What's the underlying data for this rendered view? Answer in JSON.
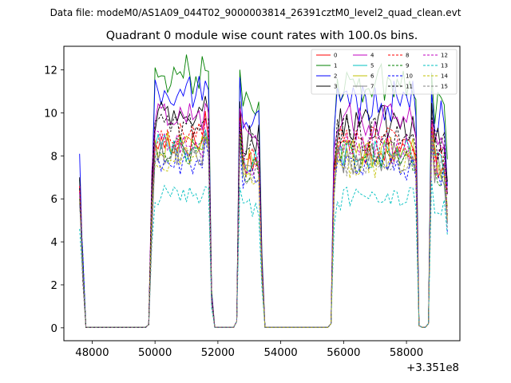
{
  "chart_data": {
    "type": "line",
    "suptitle": "Data file: modeM0/AS1A09_044T02_9000003814_26391cztM0_level2_quad_clean.evt",
    "title": "Quadrant 0 module wise count rates with 100.0s bins.",
    "xlabel": "",
    "ylabel": "",
    "x_offset_label": "+3.351e8",
    "xlim": [
      47100,
      59700
    ],
    "ylim": [
      -0.6,
      13.1
    ],
    "xticks": [
      48000,
      50000,
      52000,
      54000,
      56000,
      58000
    ],
    "xtick_labels": [
      "48000",
      "50000",
      "52000",
      "54000",
      "56000",
      "58000"
    ],
    "yticks": [
      0,
      2,
      4,
      6,
      8,
      10,
      12
    ],
    "ytick_labels": [
      "0",
      "2",
      "4",
      "6",
      "8",
      "10",
      "12"
    ],
    "legend_location": "upper right",
    "legend_columns": 4,
    "time_bins": {
      "start": 47600,
      "step": 100,
      "segments": [
        {
          "from": 47600,
          "to": 49800,
          "state": "drop"
        },
        {
          "from": 49800,
          "to": 51800,
          "state": "active"
        },
        {
          "from": 51800,
          "to": 52600,
          "state": "gap"
        },
        {
          "from": 52700,
          "to": 53400,
          "state": "active"
        },
        {
          "from": 53500,
          "to": 55600,
          "state": "gap"
        },
        {
          "from": 55700,
          "to": 58300,
          "state": "active"
        },
        {
          "from": 58400,
          "to": 58700,
          "state": "gap"
        },
        {
          "from": 58800,
          "to": 59300,
          "state": "active"
        }
      ]
    },
    "series": [
      {
        "name": "0",
        "color": "#ff0000",
        "dash": "solid",
        "level": 8.6,
        "start": 6.4,
        "peak1": 10.2,
        "peak2": 9.8
      },
      {
        "name": "1",
        "color": "#008000",
        "dash": "solid",
        "level": 11.8,
        "start": 6.9,
        "peak1": 12.4,
        "peak2": 12.2
      },
      {
        "name": "2",
        "color": "#0000ff",
        "dash": "solid",
        "level": 10.9,
        "start": 8.1,
        "peak1": 11.7,
        "peak2": 11.4
      },
      {
        "name": "3",
        "color": "#000000",
        "dash": "solid",
        "level": 9.8,
        "start": 7.0,
        "peak1": 10.8,
        "peak2": 10.9
      },
      {
        "name": "4",
        "color": "#c000c0",
        "dash": "solid",
        "level": 9.9,
        "start": 6.6,
        "peak1": 10.7,
        "peak2": 10.2
      },
      {
        "name": "5",
        "color": "#00c0c0",
        "dash": "solid",
        "level": 8.4,
        "start": 6.2,
        "peak1": 9.3,
        "peak2": 9.4
      },
      {
        "name": "6",
        "color": "#c0c000",
        "dash": "solid",
        "level": 8.5,
        "start": 6.1,
        "peak1": 9.0,
        "peak2": 9.3
      },
      {
        "name": "7",
        "color": "#808080",
        "dash": "solid",
        "level": 8.1,
        "start": 5.8,
        "peak1": 9.0,
        "peak2": 9.1
      },
      {
        "name": "8",
        "color": "#ff0000",
        "dash": "dashed",
        "level": 8.9,
        "start": 6.6,
        "peak1": 10.1,
        "peak2": 9.7
      },
      {
        "name": "9",
        "color": "#008000",
        "dash": "dashed",
        "level": 8.2,
        "start": 6.0,
        "peak1": 9.2,
        "peak2": 9.4
      },
      {
        "name": "10",
        "color": "#0000ff",
        "dash": "dashed",
        "level": 7.7,
        "start": 5.7,
        "peak1": 8.8,
        "peak2": 8.9
      },
      {
        "name": "11",
        "color": "#000000",
        "dash": "dashed",
        "level": 9.3,
        "start": 6.5,
        "peak1": 10.0,
        "peak2": 10.3
      },
      {
        "name": "12",
        "color": "#c000c0",
        "dash": "dashed",
        "level": 8.6,
        "start": 6.3,
        "peak1": 9.8,
        "peak2": 9.6
      },
      {
        "name": "13",
        "color": "#00c0c0",
        "dash": "dashed",
        "level": 6.2,
        "start": 4.6,
        "peak1": 6.8,
        "peak2": 6.9
      },
      {
        "name": "14",
        "color": "#c0c000",
        "dash": "dashed",
        "level": 7.9,
        "start": 5.9,
        "peak1": 9.1,
        "peak2": 9.0
      },
      {
        "name": "15",
        "color": "#808080",
        "dash": "dashed",
        "level": 8.0,
        "start": 5.9,
        "peak1": 9.1,
        "peak2": 9.2
      }
    ]
  }
}
